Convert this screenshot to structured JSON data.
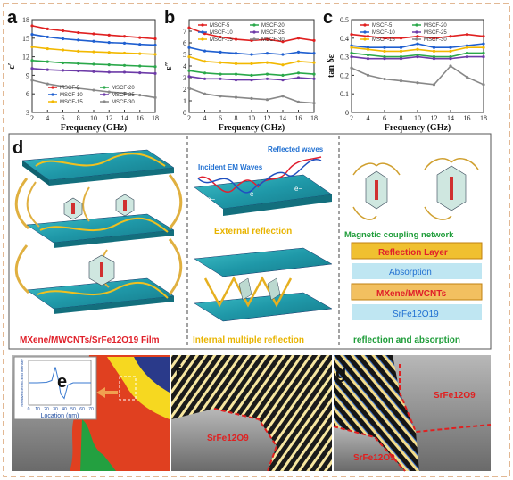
{
  "panels": {
    "a": "a",
    "b": "b",
    "c": "c",
    "d": "d",
    "e": "e",
    "f": "f",
    "g": "g"
  },
  "colors": {
    "border": "#d8a070",
    "series": [
      "#e02020",
      "#1f5fd0",
      "#f2b800",
      "#2aa84a",
      "#6d3ba8",
      "#888888"
    ]
  },
  "chart_data": [
    {
      "type": "line",
      "panel": "a",
      "ylabel": "ε′",
      "xlabel": "Frequency  (GHz)",
      "xlim": [
        2,
        18
      ],
      "ylim": [
        3,
        18
      ],
      "xticks": [
        2,
        4,
        6,
        8,
        10,
        12,
        14,
        16,
        18
      ],
      "yticks": [
        3,
        6,
        9,
        12,
        15,
        18
      ],
      "legend_position": "bottom-center",
      "series": [
        {
          "name": "MSCF-5",
          "x": [
            2,
            4,
            6,
            8,
            10,
            12,
            14,
            16,
            18
          ],
          "values": [
            17.0,
            16.5,
            16.2,
            15.9,
            15.7,
            15.5,
            15.3,
            15.1,
            14.9
          ]
        },
        {
          "name": "MSCF-10",
          "x": [
            2,
            4,
            6,
            8,
            10,
            12,
            14,
            16,
            18
          ],
          "values": [
            15.6,
            15.2,
            14.9,
            14.7,
            14.5,
            14.3,
            14.2,
            14.0,
            13.9
          ]
        },
        {
          "name": "MSCF-15",
          "x": [
            2,
            4,
            6,
            8,
            10,
            12,
            14,
            16,
            18
          ],
          "values": [
            13.6,
            13.3,
            13.1,
            12.9,
            12.8,
            12.7,
            12.6,
            12.5,
            12.4
          ]
        },
        {
          "name": "MSCF-20",
          "x": [
            2,
            4,
            6,
            8,
            10,
            12,
            14,
            16,
            18
          ],
          "values": [
            11.4,
            11.2,
            11.0,
            10.9,
            10.8,
            10.7,
            10.6,
            10.5,
            10.4
          ]
        },
        {
          "name": "MSCF-25",
          "x": [
            2,
            4,
            6,
            8,
            10,
            12,
            14,
            16,
            18
          ],
          "values": [
            10.1,
            9.9,
            9.8,
            9.7,
            9.6,
            9.5,
            9.5,
            9.4,
            9.3
          ]
        },
        {
          "name": "MSCF-30",
          "x": [
            2,
            4,
            6,
            8,
            10,
            12,
            14,
            16,
            18
          ],
          "values": [
            8.2,
            7.6,
            7.2,
            6.9,
            6.6,
            6.3,
            6.1,
            5.8,
            5.4
          ]
        }
      ]
    },
    {
      "type": "line",
      "panel": "b",
      "ylabel": "ε″",
      "xlabel": "Frequency  (GHz)",
      "xlim": [
        2,
        18
      ],
      "ylim": [
        0,
        8
      ],
      "xticks": [
        2,
        4,
        6,
        8,
        10,
        12,
        14,
        16,
        18
      ],
      "yticks": [
        0,
        1,
        2,
        3,
        4,
        5,
        6,
        7
      ],
      "legend_position": "top",
      "series": [
        {
          "name": "MSCF-5",
          "x": [
            2,
            4,
            6,
            8,
            10,
            12,
            14,
            16,
            18
          ],
          "values": [
            7.3,
            6.8,
            6.5,
            6.3,
            6.2,
            6.3,
            6.1,
            6.4,
            6.2
          ]
        },
        {
          "name": "MSCF-10",
          "x": [
            2,
            4,
            6,
            8,
            10,
            12,
            14,
            16,
            18
          ],
          "values": [
            5.6,
            5.3,
            5.2,
            5.1,
            5.0,
            5.1,
            5.0,
            5.2,
            5.1
          ]
        },
        {
          "name": "MSCF-15",
          "x": [
            2,
            4,
            6,
            8,
            10,
            12,
            14,
            16,
            18
          ],
          "values": [
            4.8,
            4.4,
            4.3,
            4.2,
            4.2,
            4.3,
            4.1,
            4.4,
            4.3
          ]
        },
        {
          "name": "MSCF-20",
          "x": [
            2,
            4,
            6,
            8,
            10,
            12,
            14,
            16,
            18
          ],
          "values": [
            3.6,
            3.4,
            3.3,
            3.3,
            3.2,
            3.3,
            3.2,
            3.4,
            3.3
          ]
        },
        {
          "name": "MSCF-25",
          "x": [
            2,
            4,
            6,
            8,
            10,
            12,
            14,
            16,
            18
          ],
          "values": [
            3.1,
            2.9,
            2.9,
            2.8,
            2.8,
            2.9,
            2.8,
            3.0,
            2.9
          ]
        },
        {
          "name": "MSCF-30",
          "x": [
            2,
            4,
            6,
            8,
            10,
            12,
            14,
            16,
            18
          ],
          "values": [
            2.1,
            1.6,
            1.4,
            1.3,
            1.2,
            1.1,
            1.4,
            0.9,
            0.8
          ]
        }
      ]
    },
    {
      "type": "line",
      "panel": "c",
      "ylabel": "tan δε",
      "xlabel": "Frequency  (GHz)",
      "xlim": [
        2,
        18
      ],
      "ylim": [
        0.0,
        0.5
      ],
      "xticks": [
        2,
        4,
        6,
        8,
        10,
        12,
        14,
        16,
        18
      ],
      "yticks": [
        0.0,
        0.1,
        0.2,
        0.3,
        0.4,
        0.5
      ],
      "legend_position": "top",
      "series": [
        {
          "name": "MSCF-5",
          "x": [
            2,
            4,
            6,
            8,
            10,
            12,
            14,
            16,
            18
          ],
          "values": [
            0.42,
            0.41,
            0.4,
            0.4,
            0.41,
            0.4,
            0.41,
            0.42,
            0.41
          ]
        },
        {
          "name": "MSCF-10",
          "x": [
            2,
            4,
            6,
            8,
            10,
            12,
            14,
            16,
            18
          ],
          "values": [
            0.36,
            0.35,
            0.35,
            0.35,
            0.37,
            0.35,
            0.35,
            0.36,
            0.37
          ]
        },
        {
          "name": "MSCF-15",
          "x": [
            2,
            4,
            6,
            8,
            10,
            12,
            14,
            16,
            18
          ],
          "values": [
            0.35,
            0.34,
            0.33,
            0.33,
            0.34,
            0.33,
            0.33,
            0.35,
            0.35
          ]
        },
        {
          "name": "MSCF-20",
          "x": [
            2,
            4,
            6,
            8,
            10,
            12,
            14,
            16,
            18
          ],
          "values": [
            0.32,
            0.31,
            0.3,
            0.3,
            0.31,
            0.3,
            0.3,
            0.32,
            0.32
          ]
        },
        {
          "name": "MSCF-25",
          "x": [
            2,
            4,
            6,
            8,
            10,
            12,
            14,
            16,
            18
          ],
          "values": [
            0.3,
            0.29,
            0.29,
            0.29,
            0.3,
            0.29,
            0.29,
            0.3,
            0.3
          ]
        },
        {
          "name": "MSCF-30",
          "x": [
            2,
            4,
            6,
            8,
            10,
            12,
            14,
            16,
            18
          ],
          "values": [
            0.24,
            0.2,
            0.18,
            0.17,
            0.16,
            0.15,
            0.25,
            0.19,
            0.15
          ]
        }
      ]
    },
    {
      "type": "line",
      "panel": "e-inset",
      "ylabel": "Relative Electric-field intensity",
      "xlabel": "Location  (nm)",
      "xlim": [
        0,
        70
      ],
      "xticks": [
        0,
        10,
        20,
        30,
        40,
        50,
        60,
        70
      ],
      "ylim": [
        -1,
        1
      ],
      "series": [
        {
          "x": [
            0,
            10,
            20,
            26,
            30,
            33,
            36,
            40,
            44,
            50,
            60,
            70
          ],
          "values": [
            0,
            0,
            0.02,
            0.1,
            0.7,
            0.2,
            -0.5,
            -0.7,
            -0.1,
            0,
            0,
            0
          ]
        }
      ]
    }
  ],
  "panel_d": {
    "incident": "Incident EM Waves",
    "reflected": "Reflected waves",
    "electron": "e−",
    "external": "External reflection",
    "internal": "Internal multiple reflection",
    "film": "MXene/MWCNTs/SrFe12O19 Film",
    "magnetic": "Magnetic coupling network",
    "reflection_layer": "Reflection Layer",
    "absorption": "Absorption",
    "mxene": "MXene/MWCNTs",
    "srfe": "SrFe12O19",
    "refl_abs": "reflection and absorption"
  },
  "panel_f": {
    "label": "SrFe12O9"
  },
  "panel_g": {
    "label1": "SrFe12O9",
    "label2": "SrFe12O9"
  }
}
